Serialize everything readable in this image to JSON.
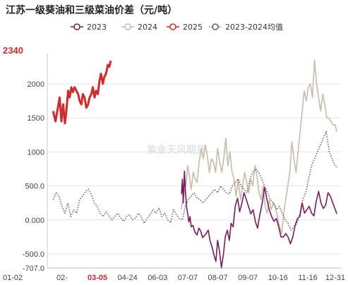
{
  "chart_data": {
    "type": "line",
    "title": "江苏一级葵油和三级菜油价差（元/吨）",
    "watermark": "紫金天风期货",
    "x_tick_labels": [
      "01-02",
      "02-",
      "03-05",
      "04-24",
      "06-03",
      "07-07",
      "08-07",
      "09-07",
      "10-16",
      "11-16",
      "12-31"
    ],
    "highlight_x_label": "03-05",
    "y_ticks": [
      -707.0,
      -500.0,
      0.0,
      500.0,
      1000.0,
      1500.0,
      2000.0
    ],
    "y_tick_labels": [
      "-707.0",
      "-500.0",
      "0.000",
      "500.0",
      "1000",
      "1500",
      "2000"
    ],
    "ylim": [
      -707,
      2445
    ],
    "latest_value_label": "2340",
    "x_domain": [
      0,
      100
    ],
    "series": [
      {
        "name": "2023",
        "color": "#7a1a5f",
        "style": "solid",
        "x": [
          45.7,
          46.0,
          46.3,
          46.7,
          47.0,
          47.4,
          47.8,
          48.2,
          48.6,
          49.0,
          49.6,
          50.3,
          51.0,
          51.6,
          52.2,
          52.9,
          53.5,
          54.1,
          54.8,
          55.4,
          56.1,
          56.8,
          57.4,
          58.0,
          58.6,
          59.3,
          60.0,
          60.6,
          61.3,
          62.0,
          62.6,
          63.3,
          64.0,
          64.8,
          65.5,
          66.3,
          67.0,
          67.8,
          68.5,
          69.3,
          70.1,
          70.9,
          71.6,
          72.4,
          73.2,
          74.0,
          74.8,
          75.6,
          76.4,
          77.2,
          78.0,
          78.8,
          79.6,
          80.4,
          81.2,
          82.0,
          82.8,
          83.6,
          84.4,
          85.2,
          86.0,
          86.8,
          87.6,
          88.4,
          89.2,
          90.0,
          90.8,
          91.6,
          92.4,
          93.2,
          94.0,
          94.8,
          95.6,
          96.4,
          97.2,
          98.0,
          98.6
        ],
        "values": [
          380,
          600,
          250,
          720,
          450,
          200,
          100,
          -30,
          50,
          -100,
          -80,
          -180,
          -220,
          -120,
          -160,
          -260,
          -230,
          -200,
          -150,
          -300,
          -400,
          -520,
          -610,
          -300,
          -450,
          -700,
          -500,
          -250,
          -150,
          -300,
          -50,
          -100,
          200,
          320,
          120,
          250,
          400,
          300,
          200,
          90,
          150,
          -30,
          -120,
          80,
          250,
          480,
          300,
          150,
          50,
          -20,
          20,
          -100,
          -250,
          -250,
          -200,
          -250,
          -350,
          -250,
          -80,
          20,
          50,
          250,
          100,
          150,
          200,
          100,
          60,
          280,
          420,
          250,
          170,
          220,
          400,
          350,
          250,
          160,
          90
        ]
      },
      {
        "name": "2024",
        "color": "#c8bba8",
        "style": "solid",
        "x": [
          45.5,
          46.0,
          46.6,
          47.2,
          47.8,
          48.4,
          49.0,
          49.7,
          50.4,
          51.0,
          51.7,
          52.4,
          53.1,
          53.8,
          54.5,
          55.2,
          55.9,
          56.6,
          57.3,
          58.0,
          58.7,
          59.4,
          60.1,
          60.8,
          61.5,
          62.2,
          62.9,
          63.6,
          64.3,
          65.0,
          65.8,
          66.5,
          67.2,
          67.9,
          68.6,
          69.3,
          70.0,
          70.7,
          71.4,
          72.1,
          72.8,
          73.5,
          74.2,
          74.9,
          75.6,
          76.3,
          77.0,
          77.7,
          78.4,
          79.1,
          79.8,
          80.5,
          81.2,
          81.9,
          82.6,
          83.3,
          84.0,
          84.7,
          85.4,
          86.1,
          86.8,
          87.5,
          88.2,
          88.9,
          89.6,
          90.3,
          91.0,
          91.7,
          92.4,
          93.1,
          93.8,
          94.5,
          95.2,
          95.9,
          96.6,
          97.3,
          98.0,
          98.6
        ],
        "values": [
          150,
          250,
          400,
          500,
          800,
          650,
          450,
          700,
          600,
          550,
          850,
          1050,
          900,
          1100,
          950,
          700,
          900,
          850,
          700,
          1050,
          850,
          700,
          900,
          1200,
          800,
          1000,
          700,
          600,
          350,
          600,
          300,
          500,
          700,
          550,
          400,
          600,
          500,
          800,
          650,
          400,
          300,
          500,
          200,
          100,
          300,
          150,
          250,
          200,
          50,
          -100,
          -200,
          100,
          300,
          500,
          700,
          1150,
          900,
          700,
          1000,
          1300,
          1600,
          1900,
          1750,
          1950,
          2000,
          1800,
          2350,
          2000,
          1800,
          1600,
          1850,
          1700,
          1500,
          1500,
          1450,
          1400,
          1400,
          1300
        ]
      },
      {
        "name": "2025",
        "color": "#d42a2a",
        "style": "solid",
        "x": [
          2.0,
          2.8,
          3.6,
          4.2,
          4.8,
          5.4,
          6.0,
          6.5,
          7.1,
          7.6,
          8.2,
          8.7,
          9.3,
          9.9,
          10.5,
          11.0,
          11.6,
          12.1,
          12.7,
          13.3,
          13.9,
          14.4,
          15.0,
          15.5,
          16.1,
          16.6,
          17.2,
          17.8,
          18.3,
          18.9,
          19.4,
          20.0,
          20.6,
          21.1,
          21.6
        ],
        "values": [
          1600,
          1450,
          1650,
          1800,
          1450,
          1700,
          1420,
          1600,
          1900,
          1800,
          1950,
          1880,
          1950,
          1900,
          1850,
          1750,
          1700,
          1850,
          1800,
          1650,
          1700,
          1800,
          1850,
          1950,
          1800,
          1900,
          1850,
          2050,
          2150,
          2000,
          2100,
          2150,
          2280,
          2250,
          2340
        ]
      },
      {
        "name": "2023-2024均值",
        "color": "#666666",
        "style": "dotted",
        "x": [
          2.0,
          3.0,
          4.0,
          5.0,
          6.0,
          7.0,
          8.0,
          9.0,
          10.0,
          11.0,
          12.0,
          13.0,
          14.0,
          15.0,
          16.0,
          17.0,
          18.0,
          19.0,
          20.0,
          21.0,
          22.0,
          23.0,
          24.0,
          25.0,
          26.0,
          27.0,
          28.0,
          29.0,
          30.0,
          31.0,
          32.0,
          33.0,
          34.0,
          35.0,
          36.0,
          37.0,
          38.0,
          39.0,
          40.0,
          41.0,
          42.0,
          43.0,
          44.0,
          45.0,
          46.0,
          47.0,
          48.0,
          49.0,
          50.0,
          51.0,
          52.0,
          53.0,
          54.0,
          55.0,
          56.0,
          57.0,
          58.0,
          59.0,
          60.0,
          61.0,
          62.0,
          63.0,
          64.0,
          65.0,
          66.0,
          67.0,
          68.0,
          69.0,
          70.0,
          71.0,
          72.0,
          73.0,
          74.0,
          75.0,
          76.0,
          77.0,
          78.0,
          79.0,
          80.0,
          81.0,
          82.0,
          83.0,
          84.0,
          85.0,
          86.0,
          87.0,
          88.0,
          89.0,
          90.0,
          91.0,
          92.0,
          93.0,
          94.0,
          95.0,
          96.0,
          97.0,
          98.0,
          98.6
        ],
        "values": [
          300,
          400,
          350,
          200,
          100,
          250,
          50,
          150,
          100,
          300,
          350,
          420,
          450,
          380,
          250,
          200,
          100,
          50,
          120,
          60,
          0,
          50,
          100,
          30,
          -20,
          50,
          80,
          0,
          30,
          100,
          50,
          -50,
          20,
          80,
          150,
          100,
          180,
          50,
          100,
          0,
          -40,
          150,
          80,
          20,
          0,
          200,
          300,
          350,
          400,
          320,
          300,
          250,
          300,
          350,
          400,
          450,
          400,
          500,
          450,
          400,
          380,
          500,
          550,
          600,
          500,
          450,
          400,
          600,
          700,
          750,
          700,
          600,
          500,
          400,
          300,
          250,
          150,
          200,
          100,
          0,
          -50,
          -150,
          -100,
          -50,
          100,
          300,
          400,
          600,
          800,
          900,
          1000,
          1100,
          1200,
          1300,
          1000,
          900,
          800,
          780
        ]
      }
    ]
  }
}
